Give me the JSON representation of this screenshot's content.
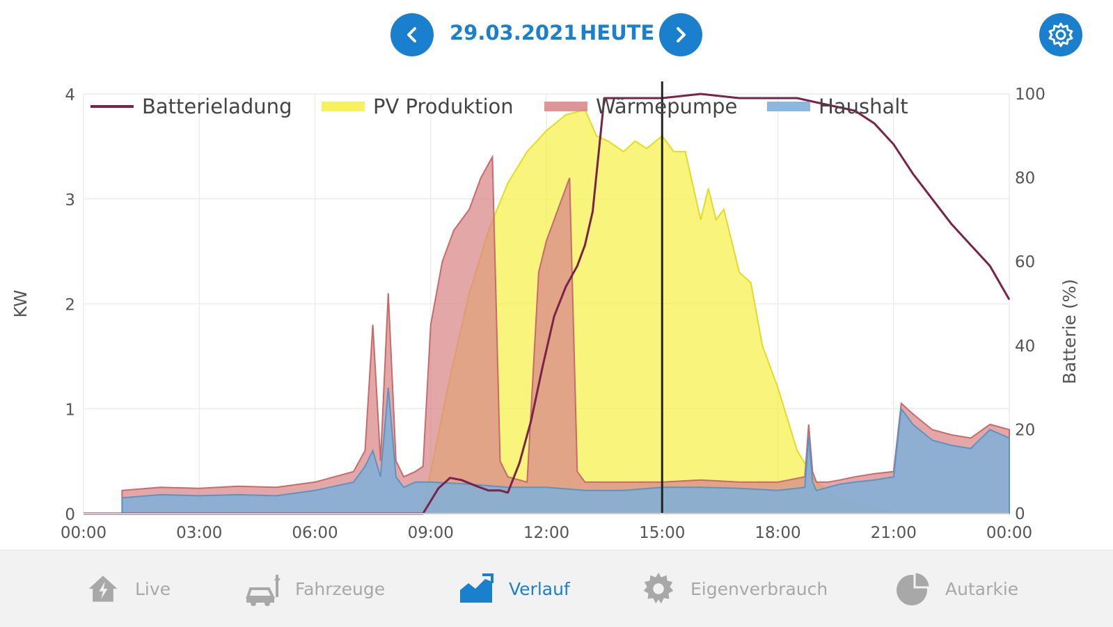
{
  "header": {
    "date": "29.03.2021",
    "today": "HEUTE"
  },
  "colors": {
    "accent": "#1a7fcc",
    "battery": "#7a2248",
    "pv": "#f5f04a",
    "heatpump": "#d98a8a",
    "household": "#7fb0d9",
    "inactive": "#a8a8a8"
  },
  "chart_data": {
    "type": "area",
    "title": "",
    "xlabel": "",
    "ylabel": "KW",
    "y2label": "Batterie (%)",
    "ylim": [
      0,
      4
    ],
    "y2lim": [
      0,
      100
    ],
    "yticks": [
      "0",
      "1",
      "2",
      "3",
      "4"
    ],
    "y2ticks": [
      "0",
      "20",
      "40",
      "60",
      "80",
      "100"
    ],
    "xlim": [
      0,
      24
    ],
    "xticks": [
      "00:00",
      "03:00",
      "06:00",
      "09:00",
      "12:00",
      "15:00",
      "18:00",
      "21:00",
      "00:00"
    ],
    "grid": true,
    "legend_position": "top",
    "current_time_marker": 15,
    "series": [
      {
        "name": "Batterieladung",
        "type": "line",
        "axis": "right",
        "color": "#7a2248",
        "x": [
          0,
          8.8,
          9.0,
          9.2,
          9.5,
          9.8,
          10.2,
          10.5,
          10.8,
          11.0,
          11.3,
          11.6,
          11.9,
          12.2,
          12.5,
          12.8,
          13.0,
          13.2,
          13.5,
          15.0,
          16.0,
          17.0,
          18.5,
          19.0,
          20.0,
          20.5,
          21.0,
          21.5,
          22.0,
          22.5,
          23.0,
          23.5,
          24.0
        ],
        "y": [
          0,
          0,
          3,
          6,
          8.5,
          8,
          6.5,
          5.5,
          5.5,
          5,
          12,
          22,
          35,
          47,
          54,
          59,
          64,
          72,
          99,
          99,
          100,
          99,
          99,
          98,
          96,
          93,
          88,
          81,
          75,
          69,
          64,
          59,
          51
        ]
      },
      {
        "name": "PV Produktion",
        "type": "area",
        "axis": "left",
        "color": "#f5f04a",
        "x": [
          8.5,
          8.8,
          9.0,
          9.5,
          10.0,
          10.5,
          11.0,
          11.5,
          12.0,
          12.5,
          13.0,
          13.3,
          13.6,
          14.0,
          14.3,
          14.6,
          15.0,
          15.3,
          15.6,
          16.0,
          16.2,
          16.4,
          16.6,
          17.0,
          17.3,
          17.6,
          18.0,
          18.5,
          19.0,
          19.5,
          20.0,
          20.5,
          21.0
        ],
        "y": [
          0,
          0.05,
          0.4,
          1.3,
          2.1,
          2.7,
          3.15,
          3.45,
          3.65,
          3.8,
          3.85,
          3.6,
          3.55,
          3.45,
          3.55,
          3.48,
          3.6,
          3.45,
          3.45,
          2.8,
          3.1,
          2.8,
          2.9,
          2.3,
          2.2,
          1.6,
          1.2,
          0.6,
          0.3,
          0.15,
          0.1,
          0.05,
          0
        ]
      },
      {
        "name": "Wärmepumpe",
        "type": "area",
        "axis": "left",
        "color": "#d98a8a",
        "x": [
          1.0,
          2.0,
          3.0,
          4.0,
          5.0,
          6.0,
          7.0,
          7.3,
          7.5,
          7.7,
          7.9,
          8.1,
          8.3,
          8.6,
          8.8,
          9.0,
          9.3,
          9.6,
          10.0,
          10.3,
          10.6,
          10.8,
          11.0,
          11.5,
          11.8,
          12.0,
          12.3,
          12.6,
          12.8,
          13.0,
          14.0,
          15.0,
          16.0,
          17.0,
          18.0,
          18.7,
          18.8,
          18.9,
          19.0,
          19.3,
          19.6,
          20.0,
          20.5,
          21.0,
          21.2,
          21.5,
          22.0,
          22.5,
          23.0,
          23.5,
          24.0
        ],
        "y": [
          0.22,
          0.25,
          0.24,
          0.26,
          0.25,
          0.3,
          0.4,
          0.6,
          1.8,
          0.5,
          2.1,
          0.5,
          0.35,
          0.4,
          0.45,
          1.8,
          2.4,
          2.7,
          2.9,
          3.2,
          3.4,
          0.5,
          0.35,
          0.3,
          2.3,
          2.6,
          2.9,
          3.2,
          0.4,
          0.3,
          0.3,
          0.3,
          0.32,
          0.3,
          0.3,
          0.35,
          0.85,
          0.4,
          0.3,
          0.3,
          0.32,
          0.35,
          0.38,
          0.4,
          1.05,
          0.95,
          0.8,
          0.75,
          0.72,
          0.85,
          0.8
        ]
      },
      {
        "name": "Haushalt",
        "type": "area",
        "axis": "left",
        "color": "#7fb0d9",
        "x": [
          1.0,
          2.0,
          3.0,
          4.0,
          5.0,
          6.0,
          7.0,
          7.3,
          7.5,
          7.7,
          7.9,
          8.1,
          8.3,
          8.6,
          8.8,
          9.0,
          10.0,
          11.0,
          12.0,
          13.0,
          14.0,
          15.0,
          16.0,
          17.0,
          18.0,
          18.7,
          18.8,
          18.9,
          19.0,
          19.3,
          19.6,
          20.0,
          20.5,
          21.0,
          21.2,
          21.5,
          22.0,
          22.5,
          23.0,
          23.5,
          24.0
        ],
        "y": [
          0.15,
          0.18,
          0.17,
          0.18,
          0.17,
          0.22,
          0.3,
          0.45,
          0.6,
          0.35,
          1.2,
          0.35,
          0.25,
          0.3,
          0.3,
          0.3,
          0.28,
          0.25,
          0.25,
          0.22,
          0.22,
          0.25,
          0.25,
          0.24,
          0.22,
          0.25,
          0.75,
          0.3,
          0.22,
          0.25,
          0.28,
          0.3,
          0.32,
          0.35,
          1.0,
          0.85,
          0.7,
          0.65,
          0.62,
          0.8,
          0.72
        ]
      }
    ]
  },
  "tabs": [
    {
      "label": "Live",
      "icon": "house-bolt-icon",
      "active": false
    },
    {
      "label": "Fahrzeuge",
      "icon": "car-charging-icon",
      "active": false
    },
    {
      "label": "Verlauf",
      "icon": "area-chart-icon",
      "active": true
    },
    {
      "label": "Eigenverbrauch",
      "icon": "gear-icon",
      "active": false
    },
    {
      "label": "Autarkie",
      "icon": "pie-chart-icon",
      "active": false
    }
  ]
}
